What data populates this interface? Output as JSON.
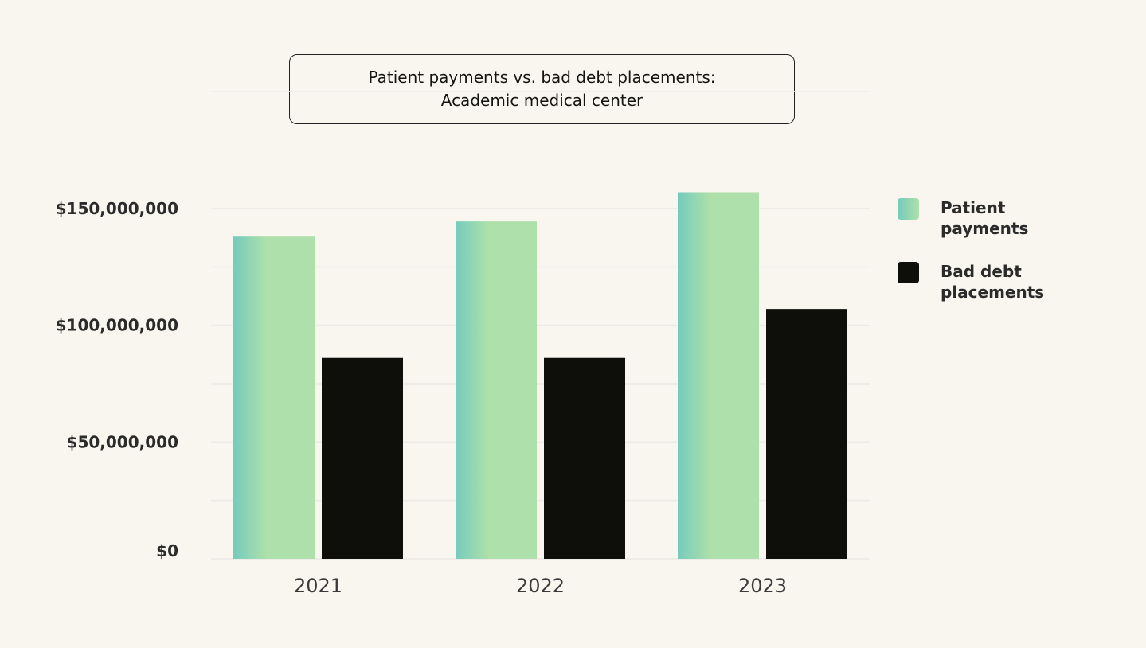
{
  "chart_data": {
    "type": "bar",
    "title_lines": [
      "Patient payments vs. bad debt placements:",
      "Academic medical center"
    ],
    "categories": [
      "2021",
      "2022",
      "2023"
    ],
    "series": [
      {
        "name": "Patient payments",
        "values": [
          138000000,
          144500000,
          157000000
        ],
        "color_start": "#75cbbd",
        "color_end": "#ade0aa"
      },
      {
        "name": "Bad debt placements",
        "values": [
          86000000,
          86000000,
          107000000
        ],
        "color_start": "#0e0f0a",
        "color_end": "#0e0f0a"
      }
    ],
    "ylim": [
      0,
      150000000
    ],
    "yticks": [
      0,
      50000000,
      100000000,
      150000000
    ],
    "ytick_labels": [
      "$0",
      "$50,000,000",
      "$100,000,000",
      "$150,000,000"
    ],
    "legend": {
      "position": "right",
      "labels": [
        "Patient payments",
        "Bad debt\nplacements"
      ]
    },
    "grid": true
  }
}
